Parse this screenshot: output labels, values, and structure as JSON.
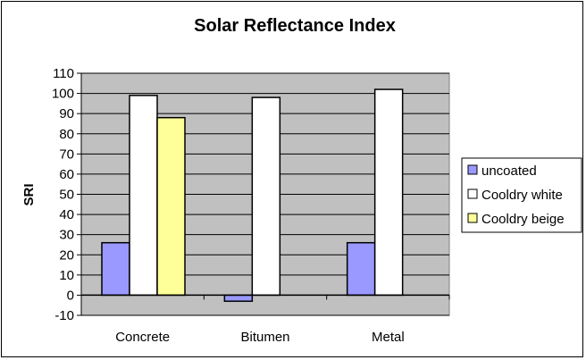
{
  "chart_data": {
    "type": "bar",
    "title": "Solar Reflectance Index",
    "xlabel": "",
    "ylabel": "SRI",
    "categories": [
      "Concrete",
      "Bitumen",
      "Metal"
    ],
    "series": [
      {
        "name": "uncoated",
        "values": [
          26,
          -3,
          26
        ],
        "color": "#9999ff"
      },
      {
        "name": "Cooldry white",
        "values": [
          99,
          98,
          102
        ],
        "color": "#ffffff"
      },
      {
        "name": "Cooldry beige",
        "values": [
          88,
          null,
          null
        ],
        "color": "#ffff99"
      }
    ],
    "ylim": [
      -10,
      110
    ],
    "yticks": [
      -10,
      0,
      10,
      20,
      30,
      40,
      50,
      60,
      70,
      80,
      90,
      100,
      110
    ],
    "grid": true,
    "legend_position": "right",
    "plot_background": "#c0c0c0"
  }
}
